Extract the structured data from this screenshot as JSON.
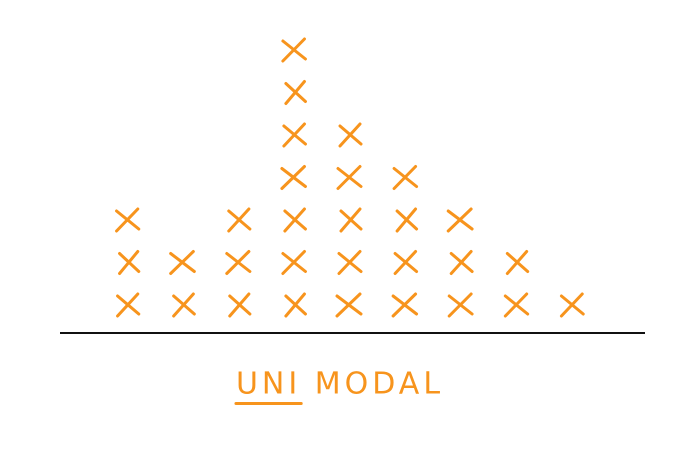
{
  "chart_data": {
    "type": "dotplot",
    "title": "UNI MODAL",
    "color": "#f7941d",
    "categories": [
      null,
      null,
      null,
      null,
      null,
      null,
      null,
      null,
      null
    ],
    "values": [
      3,
      2,
      3,
      7,
      5,
      4,
      3,
      2,
      1
    ]
  }
}
